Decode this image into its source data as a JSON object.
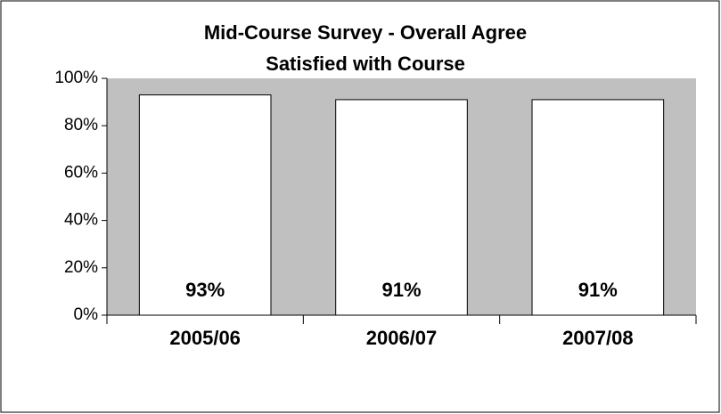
{
  "chart_data": {
    "type": "bar",
    "title": "Mid-Course Survey - Overall Agree",
    "subtitle": "Satisfied with Course",
    "categories": [
      "2005/06",
      "2006/07",
      "2007/08"
    ],
    "values": [
      93,
      91,
      91
    ],
    "value_labels": [
      "93%",
      "91%",
      "91%"
    ],
    "color": "#ffffff",
    "plot_background": "#c0c0c0",
    "ylim": [
      0,
      100
    ],
    "yticks": [
      {
        "value": 0,
        "label": "0%"
      },
      {
        "value": 20,
        "label": "20%"
      },
      {
        "value": 40,
        "label": "40%"
      },
      {
        "value": 60,
        "label": "60%"
      },
      {
        "value": 80,
        "label": "80%"
      },
      {
        "value": 100,
        "label": "100%"
      }
    ]
  }
}
